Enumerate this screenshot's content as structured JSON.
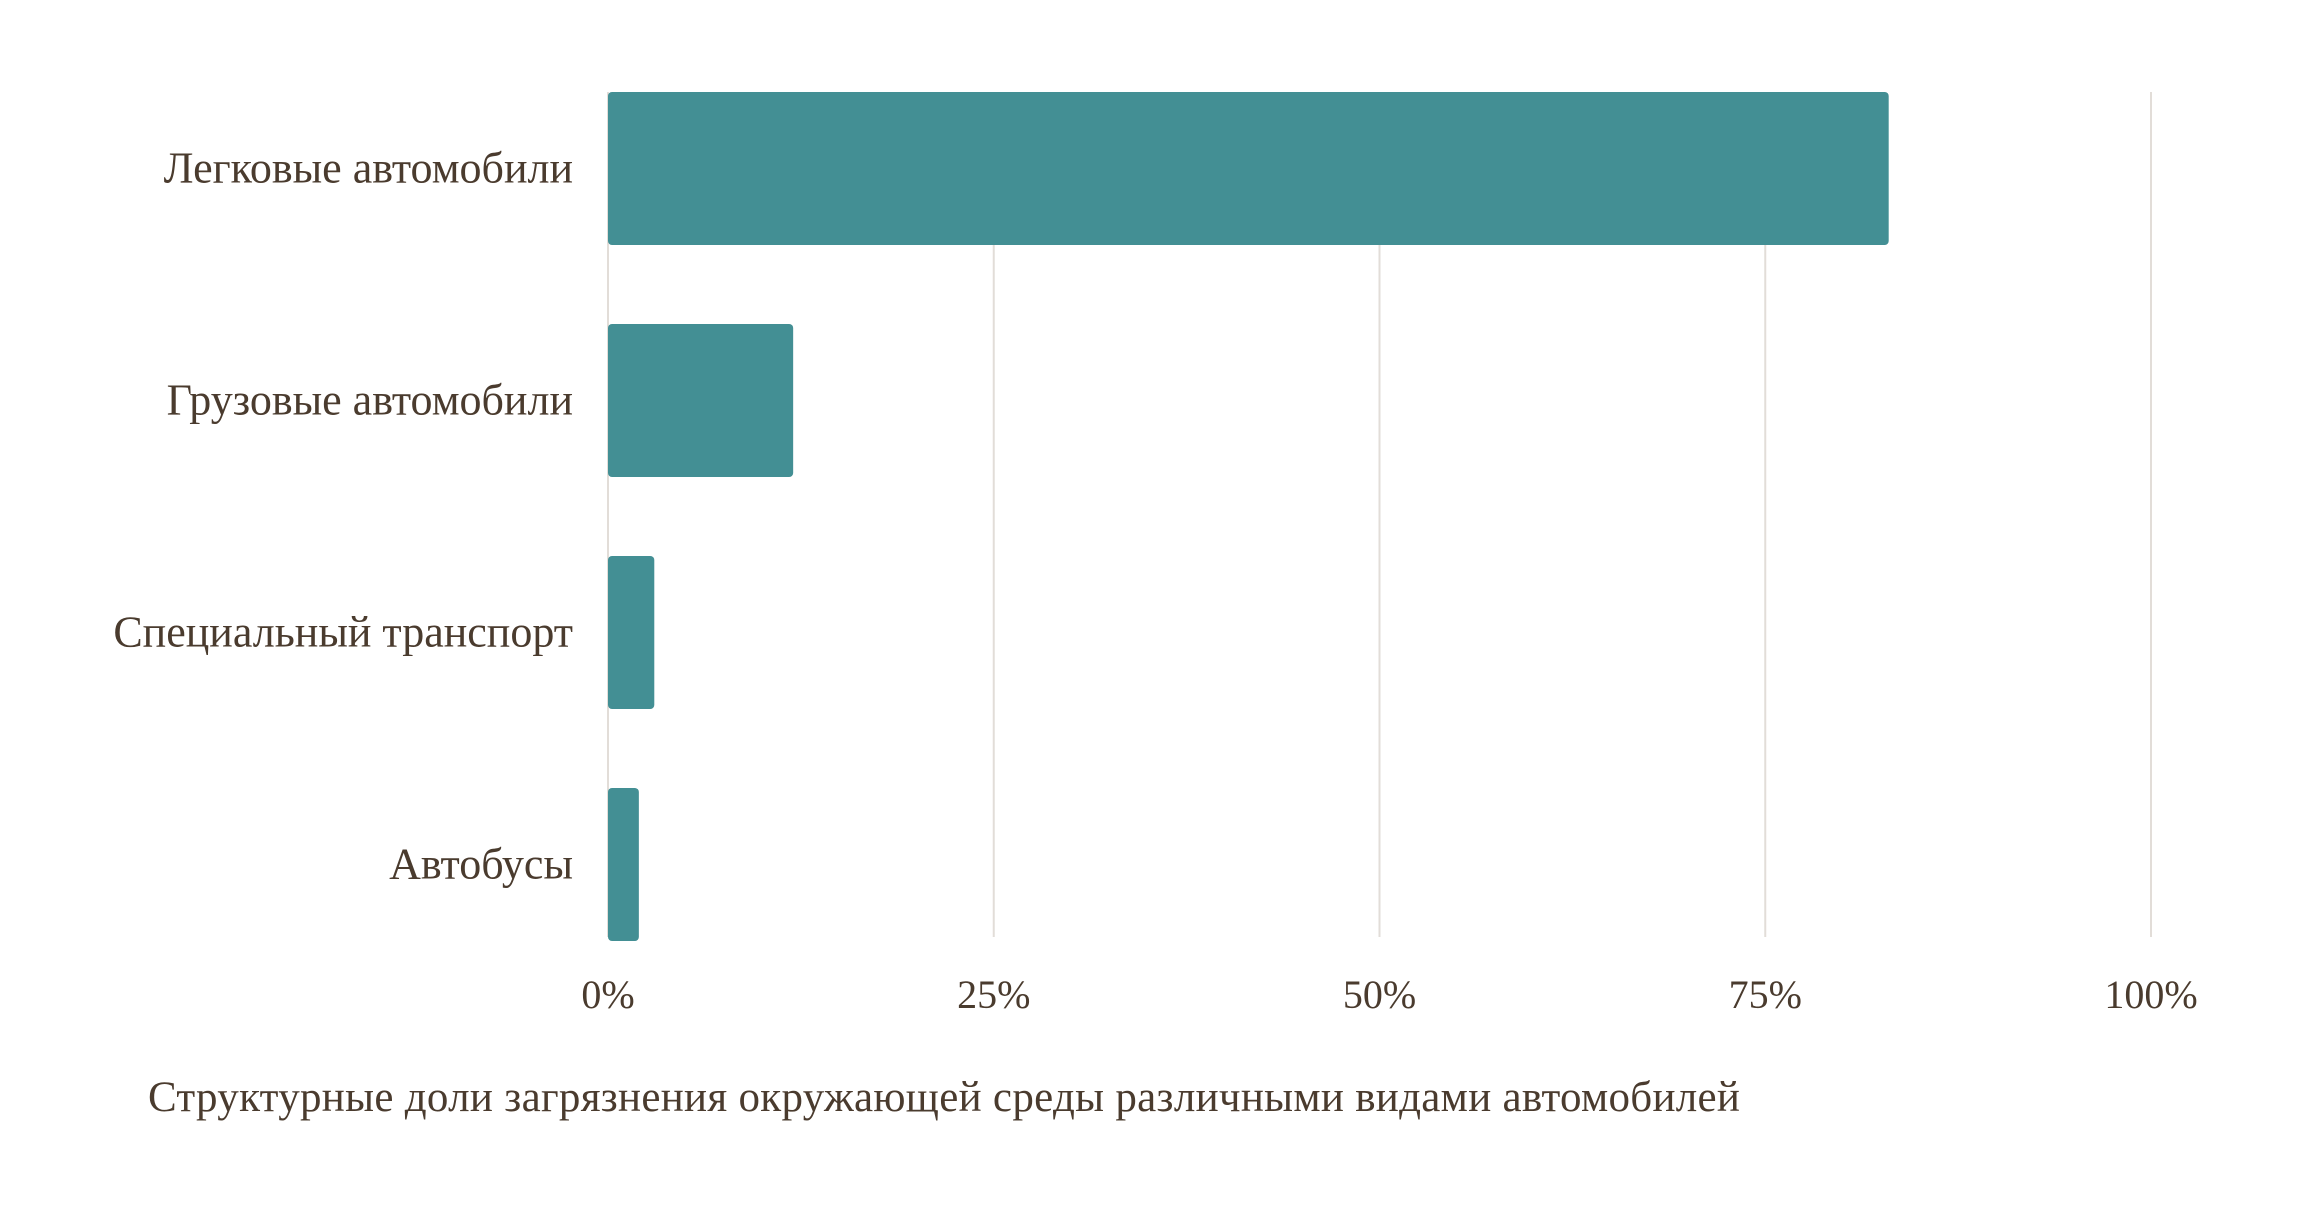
{
  "chart_data": {
    "type": "bar",
    "orientation": "horizontal",
    "title": "Структурные доли загрязнения окружающей среды различными видами автомобилей",
    "categories": [
      "Легковые автомобили",
      "Грузовые автомобили",
      "Специальный транспорт",
      "Автобусы"
    ],
    "values": [
      83,
      12,
      3,
      2
    ],
    "unit": "%",
    "xlim": [
      0,
      100
    ],
    "xticks": [
      "0%",
      "25%",
      "50%",
      "75%",
      "100%"
    ],
    "xlabel": "",
    "ylabel": "",
    "grid": "vertical",
    "legend": "none",
    "bar_color": "#438f94",
    "grid_color": "#e2ddd8"
  }
}
